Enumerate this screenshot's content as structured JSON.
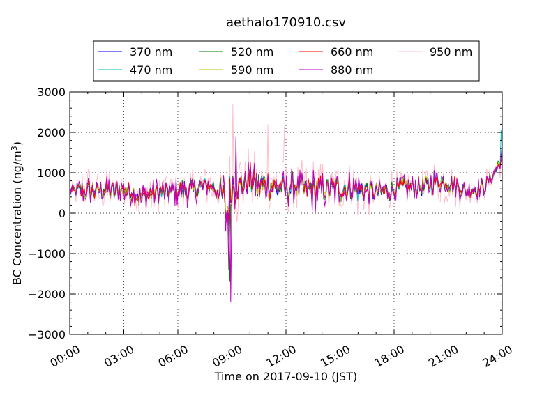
{
  "chart_data": {
    "type": "line",
    "title": "aethalo170910.csv",
    "xlabel": "Time on 2017-09-10 (JST)",
    "ylabel_main": "BC Concentration (ng/m",
    "ylabel_sup": "3",
    "ylabel_close": ")",
    "xlim": [
      0,
      24
    ],
    "ylim": [
      -3000,
      3000
    ],
    "grid": true,
    "legend_position": "top",
    "x_ticks": [
      {
        "value": 0,
        "label": "00:00"
      },
      {
        "value": 3,
        "label": "03:00"
      },
      {
        "value": 6,
        "label": "06:00"
      },
      {
        "value": 9,
        "label": "09:00"
      },
      {
        "value": 12,
        "label": "12:00"
      },
      {
        "value": 15,
        "label": "15:00"
      },
      {
        "value": 18,
        "label": "18:00"
      },
      {
        "value": 21,
        "label": "21:00"
      },
      {
        "value": 24,
        "label": "24:00"
      }
    ],
    "y_ticks": [
      {
        "value": 3000,
        "label": "3000"
      },
      {
        "value": 2000,
        "label": "2000"
      },
      {
        "value": 1000,
        "label": "1000"
      },
      {
        "value": 0,
        "label": "0"
      },
      {
        "value": -1000,
        "label": "−1000"
      },
      {
        "value": -2000,
        "label": "−2000"
      },
      {
        "value": -3000,
        "label": "−3000"
      }
    ],
    "series": [
      {
        "name": "370 nm",
        "color": "#0000ff"
      },
      {
        "name": "470 nm",
        "color": "#00bfbf"
      },
      {
        "name": "520 nm",
        "color": "#008000"
      },
      {
        "name": "590 nm",
        "color": "#bfbf00"
      },
      {
        "name": "660 nm",
        "color": "#ff0000"
      },
      {
        "name": "880 nm",
        "color": "#bf00bf"
      },
      {
        "name": "950 nm",
        "color": "#ffc0cb"
      }
    ],
    "x": [
      0.0,
      0.5,
      1.0,
      1.5,
      2.0,
      2.5,
      3.0,
      3.5,
      4.0,
      4.5,
      5.0,
      5.5,
      6.0,
      6.5,
      7.0,
      7.5,
      8.0,
      8.5,
      8.7,
      9.0,
      9.5,
      10.0,
      10.5,
      11.0,
      11.5,
      12.0,
      12.5,
      13.0,
      13.5,
      14.0,
      14.5,
      15.0,
      15.5,
      16.0,
      16.5,
      17.0,
      17.5,
      18.0,
      18.5,
      19.0,
      19.5,
      20.0,
      20.5,
      21.0,
      21.5,
      22.0,
      22.5,
      23.0,
      23.5,
      24.0
    ],
    "envelope_lower": [
      300,
      100,
      0,
      100,
      100,
      50,
      100,
      0,
      -200,
      0,
      0,
      50,
      50,
      0,
      100,
      300,
      200,
      -400,
      -1500,
      -400,
      0,
      100,
      -100,
      0,
      0,
      0,
      0,
      0,
      -200,
      0,
      0,
      0,
      0,
      0,
      0,
      50,
      100,
      100,
      200,
      200,
      200,
      200,
      300,
      300,
      200,
      200,
      200,
      300,
      700,
      1000
    ],
    "envelope_upper": [
      800,
      1000,
      1100,
      1000,
      1100,
      1000,
      1100,
      1000,
      1000,
      1000,
      1000,
      1000,
      1100,
      1100,
      1100,
      1100,
      1100,
      1300,
      1300,
      1800,
      1400,
      1600,
      1400,
      1400,
      1300,
      1200,
      1400,
      1200,
      1300,
      1200,
      1200,
      1200,
      1200,
      1200,
      1100,
      1000,
      1000,
      1100,
      1100,
      1100,
      1100,
      1200,
      1300,
      1200,
      1100,
      900,
      1000,
      1000,
      1200,
      1800
    ],
    "lower_spikes": [
      {
        "x": 8.8,
        "series": "880 nm",
        "y": -1400
      },
      {
        "x": 8.9,
        "series": "520 nm",
        "y": -1700
      },
      {
        "x": 8.95,
        "series": "880 nm",
        "y": -2200
      }
    ],
    "upper_spikes": [
      {
        "x": 9.05,
        "series": "950 nm",
        "y": 2700
      },
      {
        "x": 9.2,
        "series": "880 nm",
        "y": 1900
      },
      {
        "x": 11.0,
        "series": "950 nm",
        "y": 2200
      },
      {
        "x": 11.9,
        "series": "950 nm",
        "y": 2150
      },
      {
        "x": 23.95,
        "series": "470 nm",
        "y": 2050
      }
    ]
  }
}
